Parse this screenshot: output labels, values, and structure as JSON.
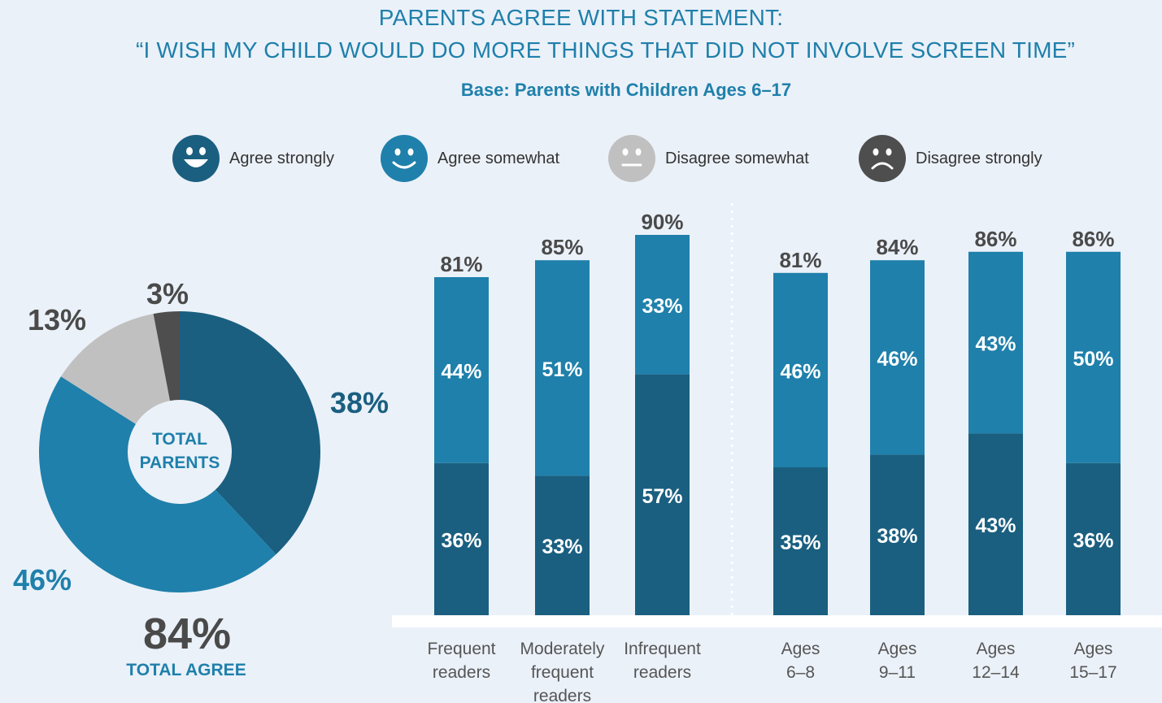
{
  "title_line1": "PARENTS AGREE WITH STATEMENT:",
  "title_line2": "“I WISH MY CHILD WOULD DO MORE THINGS THAT DID NOT INVOLVE SCREEN TIME”",
  "subtitle": "Base: Parents with Children Ages 6–17",
  "legend": [
    {
      "label": "Agree strongly",
      "icon": "happy-face-icon",
      "color": "#1a5f80"
    },
    {
      "label": "Agree somewhat",
      "icon": "smile-face-icon",
      "color": "#1f80ab"
    },
    {
      "label": "Disagree somewhat",
      "icon": "neutral-face-icon",
      "color": "#c0c0c0"
    },
    {
      "label": "Disagree strongly",
      "icon": "sad-face-icon",
      "color": "#4e4e4e"
    }
  ],
  "chart_data": [
    {
      "type": "pie",
      "center_label": [
        "TOTAL",
        "PARENTS"
      ],
      "slices": [
        {
          "name": "Agree strongly",
          "value": 38,
          "label": "38%"
        },
        {
          "name": "Agree somewhat",
          "value": 46,
          "label": "46%"
        },
        {
          "name": "Disagree somewhat",
          "value": 13,
          "label": "13%"
        },
        {
          "name": "Disagree strongly",
          "value": 3,
          "label": "3%"
        }
      ],
      "total_value": "84%",
      "total_label": "TOTAL AGREE"
    },
    {
      "type": "bar",
      "stacked": true,
      "groups": [
        {
          "categories": [
            [
              "Frequent",
              "readers"
            ],
            [
              "Moderately",
              "frequent",
              "readers"
            ],
            [
              "Infrequent",
              "readers"
            ]
          ],
          "totals": [
            "81%",
            "85%",
            "90%"
          ],
          "series": [
            {
              "name": "Agree strongly",
              "values": [
                36,
                33,
                57
              ]
            },
            {
              "name": "Agree somewhat",
              "values": [
                44,
                51,
                33
              ]
            }
          ]
        },
        {
          "categories": [
            [
              "Ages",
              "6–8"
            ],
            [
              "Ages",
              "9–11"
            ],
            [
              "Ages",
              "12–14"
            ],
            [
              "Ages",
              "15–17"
            ]
          ],
          "totals": [
            "81%",
            "84%",
            "86%",
            "86%"
          ],
          "series": [
            {
              "name": "Agree strongly",
              "values": [
                35,
                38,
                43,
                36
              ]
            },
            {
              "name": "Agree somewhat",
              "values": [
                46,
                46,
                43,
                50
              ]
            }
          ]
        }
      ]
    }
  ],
  "colors": {
    "agree_strongly": "#1a5f80",
    "agree_somewhat": "#1f80ab",
    "disagree_somewhat": "#c0c0c0",
    "disagree_strongly": "#4e4e4e",
    "value_text": "#4a4a4a",
    "axis_text": "#555555"
  }
}
